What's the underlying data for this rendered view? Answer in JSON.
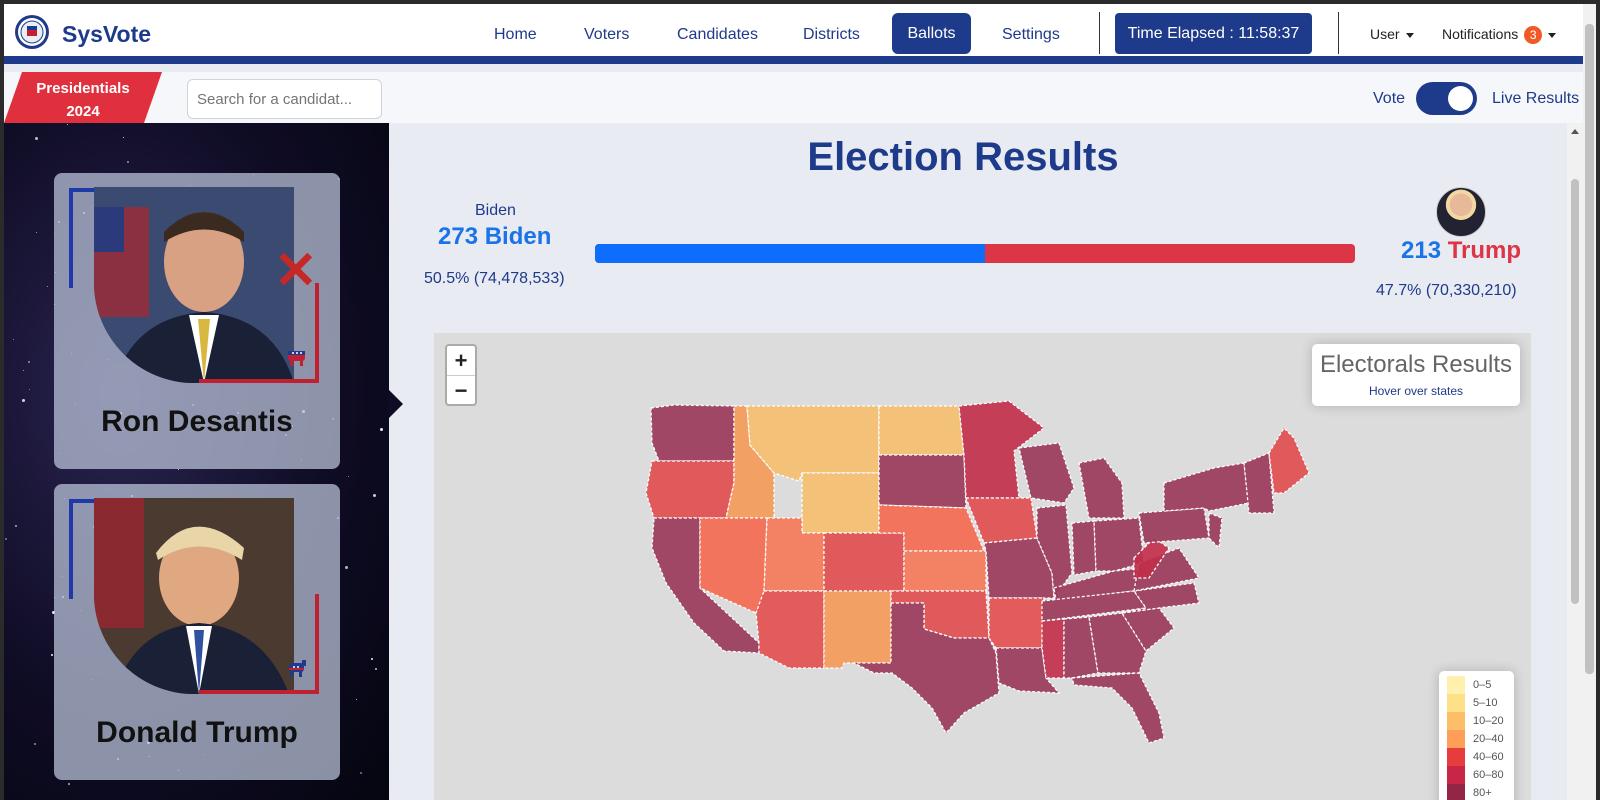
{
  "navbar": {
    "brand": "SysVote",
    "links": [
      "Home",
      "Voters",
      "Candidates",
      "Districts",
      "Ballots",
      "Settings"
    ],
    "active": "Ballots",
    "timer": "Time Elapsed : 11:58:37",
    "user": "User",
    "notifications": "Notifications",
    "notification_count": "3"
  },
  "subbar": {
    "tag_line1": "Presidentials",
    "tag_line2": "2024",
    "search_placeholder": "Search for a candidat...",
    "vote_label": "Vote",
    "live_label": "Live Results",
    "toggle_on": true
  },
  "candidates": [
    {
      "name": "Ron Desantis",
      "party": "republican",
      "party_icon": "elephant-icon",
      "eliminated": true
    },
    {
      "name": "Donald Trump",
      "party": "democratic",
      "party_icon": "donkey-icon",
      "eliminated": false
    }
  ],
  "results": {
    "title": "Election Results",
    "biden": {
      "img_alt": "Biden",
      "electoral": "273",
      "name": "Biden",
      "pct_line": "50.5% (74,478,533)"
    },
    "trump": {
      "electoral": "213",
      "name": "Trump",
      "pct_line": "47.7% (70,330,210)"
    },
    "bar_biden_fraction": 0.5125
  },
  "map": {
    "zoom_in": "+",
    "zoom_out": "−",
    "info_title": "Electorals Results",
    "info_hint": "Hover over states",
    "legend": [
      {
        "label": "0–5",
        "color": "#ffeda0"
      },
      {
        "label": "5–10",
        "color": "#fed976"
      },
      {
        "label": "10–20",
        "color": "#feb24c"
      },
      {
        "label": "20–40",
        "color": "#fd8d3c"
      },
      {
        "label": "40–60",
        "color": "#e31a1c"
      },
      {
        "label": "60–80",
        "color": "#bd0026"
      },
      {
        "label": "80+",
        "color": "#800026"
      }
    ]
  },
  "colors": {
    "primary": "#1e3a8a",
    "biden": "#0d6efd",
    "trump": "#dc3545"
  }
}
